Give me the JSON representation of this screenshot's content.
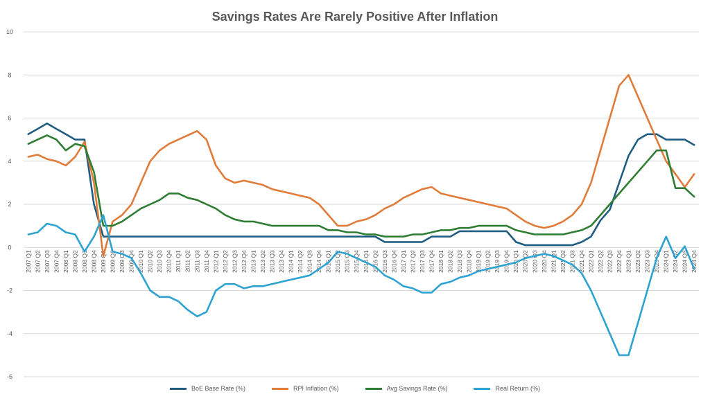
{
  "chart_data": {
    "type": "line",
    "title": "Savings Rates Are Rarely Positive After Inflation",
    "xlabel": "",
    "ylabel": "",
    "ylim": [
      -6,
      10
    ],
    "yticks": [
      -6,
      -4,
      -2,
      0,
      2,
      4,
      6,
      8,
      10
    ],
    "grid": true,
    "legend_position": "bottom",
    "categories": [
      "2007 Q1",
      "2007 Q2",
      "2007 Q3",
      "2007 Q4",
      "2008 Q1",
      "2008 Q2",
      "2008 Q3",
      "2008 Q4",
      "2009 Q1",
      "2009 Q2",
      "2009 Q3",
      "2009 Q4",
      "2010 Q1",
      "2010 Q2",
      "2010 Q3",
      "2010 Q4",
      "2011 Q1",
      "2011 Q2",
      "2011 Q3",
      "2011 Q4",
      "2012 Q1",
      "2012 Q2",
      "2012 Q3",
      "2012 Q4",
      "2013 Q1",
      "2013 Q2",
      "2013 Q3",
      "2013 Q4",
      "2014 Q1",
      "2014 Q2",
      "2014 Q3",
      "2014 Q4",
      "2015 Q1",
      "2015 Q2",
      "2015 Q3",
      "2015 Q4",
      "2016 Q1",
      "2016 Q2",
      "2016 Q3",
      "2016 Q4",
      "2017 Q1",
      "2017 Q2",
      "2017 Q3",
      "2017 Q4",
      "2018 Q1",
      "2018 Q2",
      "2018 Q3",
      "2018 Q4",
      "2019 Q1",
      "2019 Q2",
      "2019 Q3",
      "2019 Q4",
      "2020 Q1",
      "2020 Q2",
      "2020 Q3",
      "2020 Q4",
      "2021 Q1",
      "2021 Q2",
      "2021 Q3",
      "2021 Q4",
      "2022 Q1",
      "2022 Q2",
      "2022 Q3",
      "2022 Q4",
      "2023 Q1",
      "2023 Q2",
      "2023 Q3",
      "2023 Q4",
      "2024 Q1",
      "2024 Q2",
      "2024 Q3",
      "2024 Q4"
    ],
    "series": [
      {
        "name": "BoE Base Rate (%)",
        "color": "#1f5c82",
        "values": [
          5.25,
          5.5,
          5.75,
          5.5,
          5.25,
          5.0,
          5.0,
          2.0,
          0.5,
          0.5,
          0.5,
          0.5,
          0.5,
          0.5,
          0.5,
          0.5,
          0.5,
          0.5,
          0.5,
          0.5,
          0.5,
          0.5,
          0.5,
          0.5,
          0.5,
          0.5,
          0.5,
          0.5,
          0.5,
          0.5,
          0.5,
          0.5,
          0.5,
          0.5,
          0.5,
          0.5,
          0.5,
          0.5,
          0.25,
          0.25,
          0.25,
          0.25,
          0.25,
          0.5,
          0.5,
          0.5,
          0.75,
          0.75,
          0.75,
          0.75,
          0.75,
          0.75,
          0.25,
          0.1,
          0.1,
          0.1,
          0.1,
          0.1,
          0.1,
          0.25,
          0.5,
          1.25,
          1.75,
          3.0,
          4.25,
          5.0,
          5.25,
          5.25,
          5.0,
          5.0,
          5.0,
          4.75
        ]
      },
      {
        "name": "RPI Inflation (%)",
        "color": "#e07b39",
        "values": [
          4.2,
          4.3,
          4.1,
          4.0,
          3.8,
          4.2,
          4.9,
          3.0,
          -0.4,
          1.2,
          1.5,
          2.0,
          3.0,
          4.0,
          4.5,
          4.8,
          5.0,
          5.2,
          5.4,
          5.0,
          3.8,
          3.2,
          3.0,
          3.1,
          3.0,
          2.9,
          2.7,
          2.6,
          2.5,
          2.4,
          2.3,
          2.0,
          1.5,
          1.0,
          1.0,
          1.2,
          1.3,
          1.5,
          1.8,
          2.0,
          2.3,
          2.5,
          2.7,
          2.8,
          2.5,
          2.4,
          2.3,
          2.2,
          2.1,
          2.0,
          1.9,
          1.8,
          1.5,
          1.2,
          1.0,
          0.9,
          1.0,
          1.2,
          1.5,
          2.0,
          3.0,
          4.5,
          6.0,
          7.5,
          8.0,
          7.0,
          6.0,
          5.0,
          4.0,
          3.4,
          2.8,
          3.4
        ]
      },
      {
        "name": "Avg Savings Rate (%)",
        "color": "#2e7d32",
        "values": [
          4.8,
          5.0,
          5.2,
          5.0,
          4.5,
          4.8,
          4.7,
          3.5,
          1.0,
          1.0,
          1.2,
          1.5,
          1.8,
          2.0,
          2.2,
          2.5,
          2.5,
          2.3,
          2.2,
          2.0,
          1.8,
          1.5,
          1.3,
          1.2,
          1.2,
          1.1,
          1.0,
          1.0,
          1.0,
          1.0,
          1.0,
          1.0,
          0.8,
          0.8,
          0.7,
          0.7,
          0.6,
          0.6,
          0.5,
          0.5,
          0.5,
          0.6,
          0.6,
          0.7,
          0.8,
          0.8,
          0.9,
          0.9,
          1.0,
          1.0,
          1.0,
          1.0,
          0.8,
          0.7,
          0.6,
          0.6,
          0.6,
          0.6,
          0.7,
          0.8,
          1.0,
          1.5,
          2.0,
          2.5,
          3.0,
          3.5,
          4.0,
          4.5,
          4.5,
          2.75,
          2.75,
          2.35
        ]
      },
      {
        "name": "Real Return (%)",
        "color": "#2ea3d2",
        "values": [
          0.6,
          0.7,
          1.1,
          1.0,
          0.7,
          0.6,
          -0.2,
          0.5,
          1.5,
          -0.2,
          -0.3,
          -0.5,
          -1.2,
          -2.0,
          -2.3,
          -2.3,
          -2.5,
          -2.9,
          -3.2,
          -3.0,
          -2.0,
          -1.7,
          -1.7,
          -1.9,
          -1.8,
          -1.8,
          -1.7,
          -1.6,
          -1.5,
          -1.4,
          -1.3,
          -1.0,
          -0.7,
          -0.2,
          -0.3,
          -0.5,
          -0.7,
          -0.9,
          -1.3,
          -1.5,
          -1.8,
          -1.9,
          -2.1,
          -2.1,
          -1.7,
          -1.6,
          -1.4,
          -1.3,
          -1.1,
          -1.0,
          -0.9,
          -0.8,
          -0.7,
          -0.5,
          -0.4,
          -0.3,
          -0.4,
          -0.6,
          -0.8,
          -1.2,
          -2.0,
          -3.0,
          -4.0,
          -5.0,
          -5.0,
          -3.5,
          -2.0,
          -0.5,
          0.5,
          -0.5,
          0.05,
          -1.0
        ]
      }
    ]
  }
}
